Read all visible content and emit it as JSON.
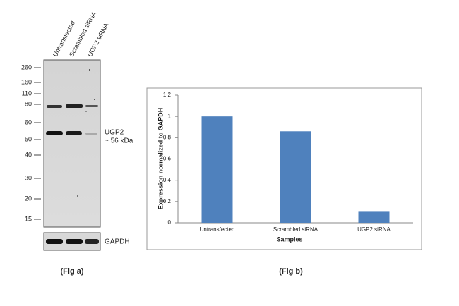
{
  "figure_a": {
    "lanes": [
      "Untransfected",
      "Scrambled siRNA",
      "UGP2 siRNA"
    ],
    "markers": [
      260,
      160,
      110,
      80,
      60,
      50,
      40,
      30,
      20,
      15
    ],
    "band_label": "UGP2",
    "band_size": "~ 56 kDa",
    "loading_control": "GAPDH",
    "caption": "(Fig a)"
  },
  "chart_data": {
    "type": "bar",
    "categories": [
      "Untransfected",
      "Scrambled siRNA",
      "UGP2  siRNA"
    ],
    "values": [
      1.0,
      0.86,
      0.11
    ],
    "color": "#4f81bd",
    "ylim": [
      0,
      1.2
    ],
    "yticks": [
      0,
      0.2,
      0.4,
      0.6,
      0.8,
      1,
      1.2
    ],
    "ylabel": "Expression normalized to GAPDH",
    "xlabel": "Samples",
    "grid": false,
    "caption": "(Fig b)"
  }
}
